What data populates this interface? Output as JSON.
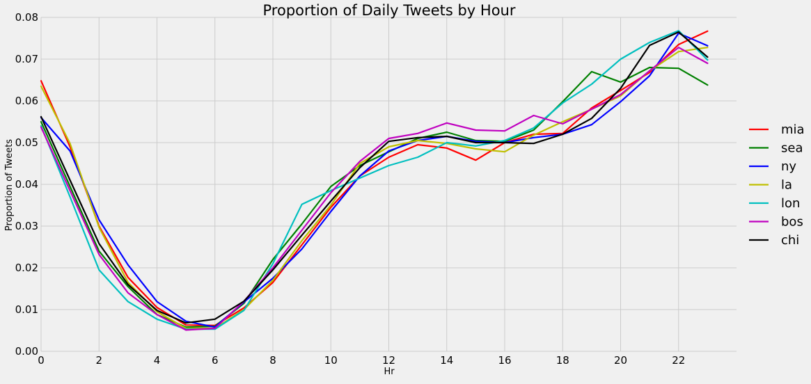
{
  "chart_data": {
    "type": "line",
    "title": "Proportion of Daily Tweets by Hour",
    "xlabel": "Hr",
    "ylabel": "Proportion of Tweets",
    "xlim": [
      0,
      24
    ],
    "ylim": [
      0,
      0.08
    ],
    "xticks": [
      0,
      2,
      4,
      6,
      8,
      10,
      12,
      14,
      16,
      18,
      20,
      22
    ],
    "xtick_labels": [
      "0",
      "2",
      "4",
      "6",
      "8",
      "10",
      "12",
      "14",
      "16",
      "18",
      "20",
      "22"
    ],
    "yticks": [
      0,
      0.01,
      0.02,
      0.03,
      0.04,
      0.05,
      0.06,
      0.07,
      0.08
    ],
    "ytick_labels": [
      "0.00",
      "0.01",
      "0.02",
      "0.03",
      "0.04",
      "0.05",
      "0.06",
      "0.07",
      "0.08"
    ],
    "grid": true,
    "legend_position": "right",
    "x": [
      0,
      1,
      2,
      3,
      4,
      5,
      6,
      7,
      8,
      9,
      10,
      11,
      12,
      13,
      14,
      15,
      16,
      17,
      18,
      19,
      20,
      21,
      22,
      23
    ],
    "series": [
      {
        "name": "mia",
        "color": "#ff0000",
        "values": [
          0.0648,
          0.049,
          0.03,
          0.0177,
          0.0105,
          0.0063,
          0.0062,
          0.0104,
          0.0165,
          0.0255,
          0.0345,
          0.042,
          0.0465,
          0.0495,
          0.0487,
          0.0458,
          0.05,
          0.052,
          0.0522,
          0.0583,
          0.0625,
          0.0668,
          0.0735,
          0.0767
        ]
      },
      {
        "name": "sea",
        "color": "#008000",
        "values": [
          0.055,
          0.0395,
          0.024,
          0.0155,
          0.0088,
          0.0058,
          0.006,
          0.0115,
          0.022,
          0.0305,
          0.0395,
          0.0445,
          0.0478,
          0.051,
          0.0525,
          0.0505,
          0.0503,
          0.053,
          0.0598,
          0.067,
          0.0645,
          0.068,
          0.0678,
          0.0638
        ]
      },
      {
        "name": "ny",
        "color": "#0000ff",
        "values": [
          0.056,
          0.048,
          0.0315,
          0.0207,
          0.0119,
          0.0072,
          0.0058,
          0.0118,
          0.0175,
          0.0245,
          0.0335,
          0.042,
          0.048,
          0.0505,
          0.0515,
          0.0503,
          0.05,
          0.0512,
          0.052,
          0.0543,
          0.0598,
          0.066,
          0.0762,
          0.0732
        ]
      },
      {
        "name": "la",
        "color": "#bfbf00",
        "values": [
          0.0635,
          0.0498,
          0.0297,
          0.0165,
          0.0095,
          0.0055,
          0.0055,
          0.01,
          0.017,
          0.0265,
          0.035,
          0.045,
          0.049,
          0.0505,
          0.0498,
          0.0485,
          0.0478,
          0.0518,
          0.055,
          0.058,
          0.0612,
          0.0672,
          0.0718,
          0.0728
        ]
      },
      {
        "name": "lon",
        "color": "#00bfbf",
        "values": [
          0.054,
          0.037,
          0.0195,
          0.0119,
          0.0077,
          0.0053,
          0.0053,
          0.0098,
          0.021,
          0.0352,
          0.0385,
          0.0415,
          0.0445,
          0.0465,
          0.05,
          0.0492,
          0.0505,
          0.0535,
          0.0595,
          0.064,
          0.07,
          0.074,
          0.0768,
          0.0698
        ]
      },
      {
        "name": "bos",
        "color": "#bf00bf",
        "values": [
          0.0537,
          0.0385,
          0.0232,
          0.014,
          0.0088,
          0.0051,
          0.0055,
          0.012,
          0.02,
          0.029,
          0.038,
          0.0455,
          0.051,
          0.0522,
          0.0547,
          0.053,
          0.0528,
          0.0565,
          0.0545,
          0.058,
          0.0615,
          0.0672,
          0.0728,
          0.069
        ]
      },
      {
        "name": "chi",
        "color": "#000000",
        "values": [
          0.0562,
          0.041,
          0.0258,
          0.016,
          0.0098,
          0.0068,
          0.0077,
          0.012,
          0.0195,
          0.0278,
          0.036,
          0.044,
          0.0503,
          0.0512,
          0.0515,
          0.05,
          0.05,
          0.0498,
          0.052,
          0.0558,
          0.063,
          0.0733,
          0.0765,
          0.0705
        ]
      }
    ]
  }
}
